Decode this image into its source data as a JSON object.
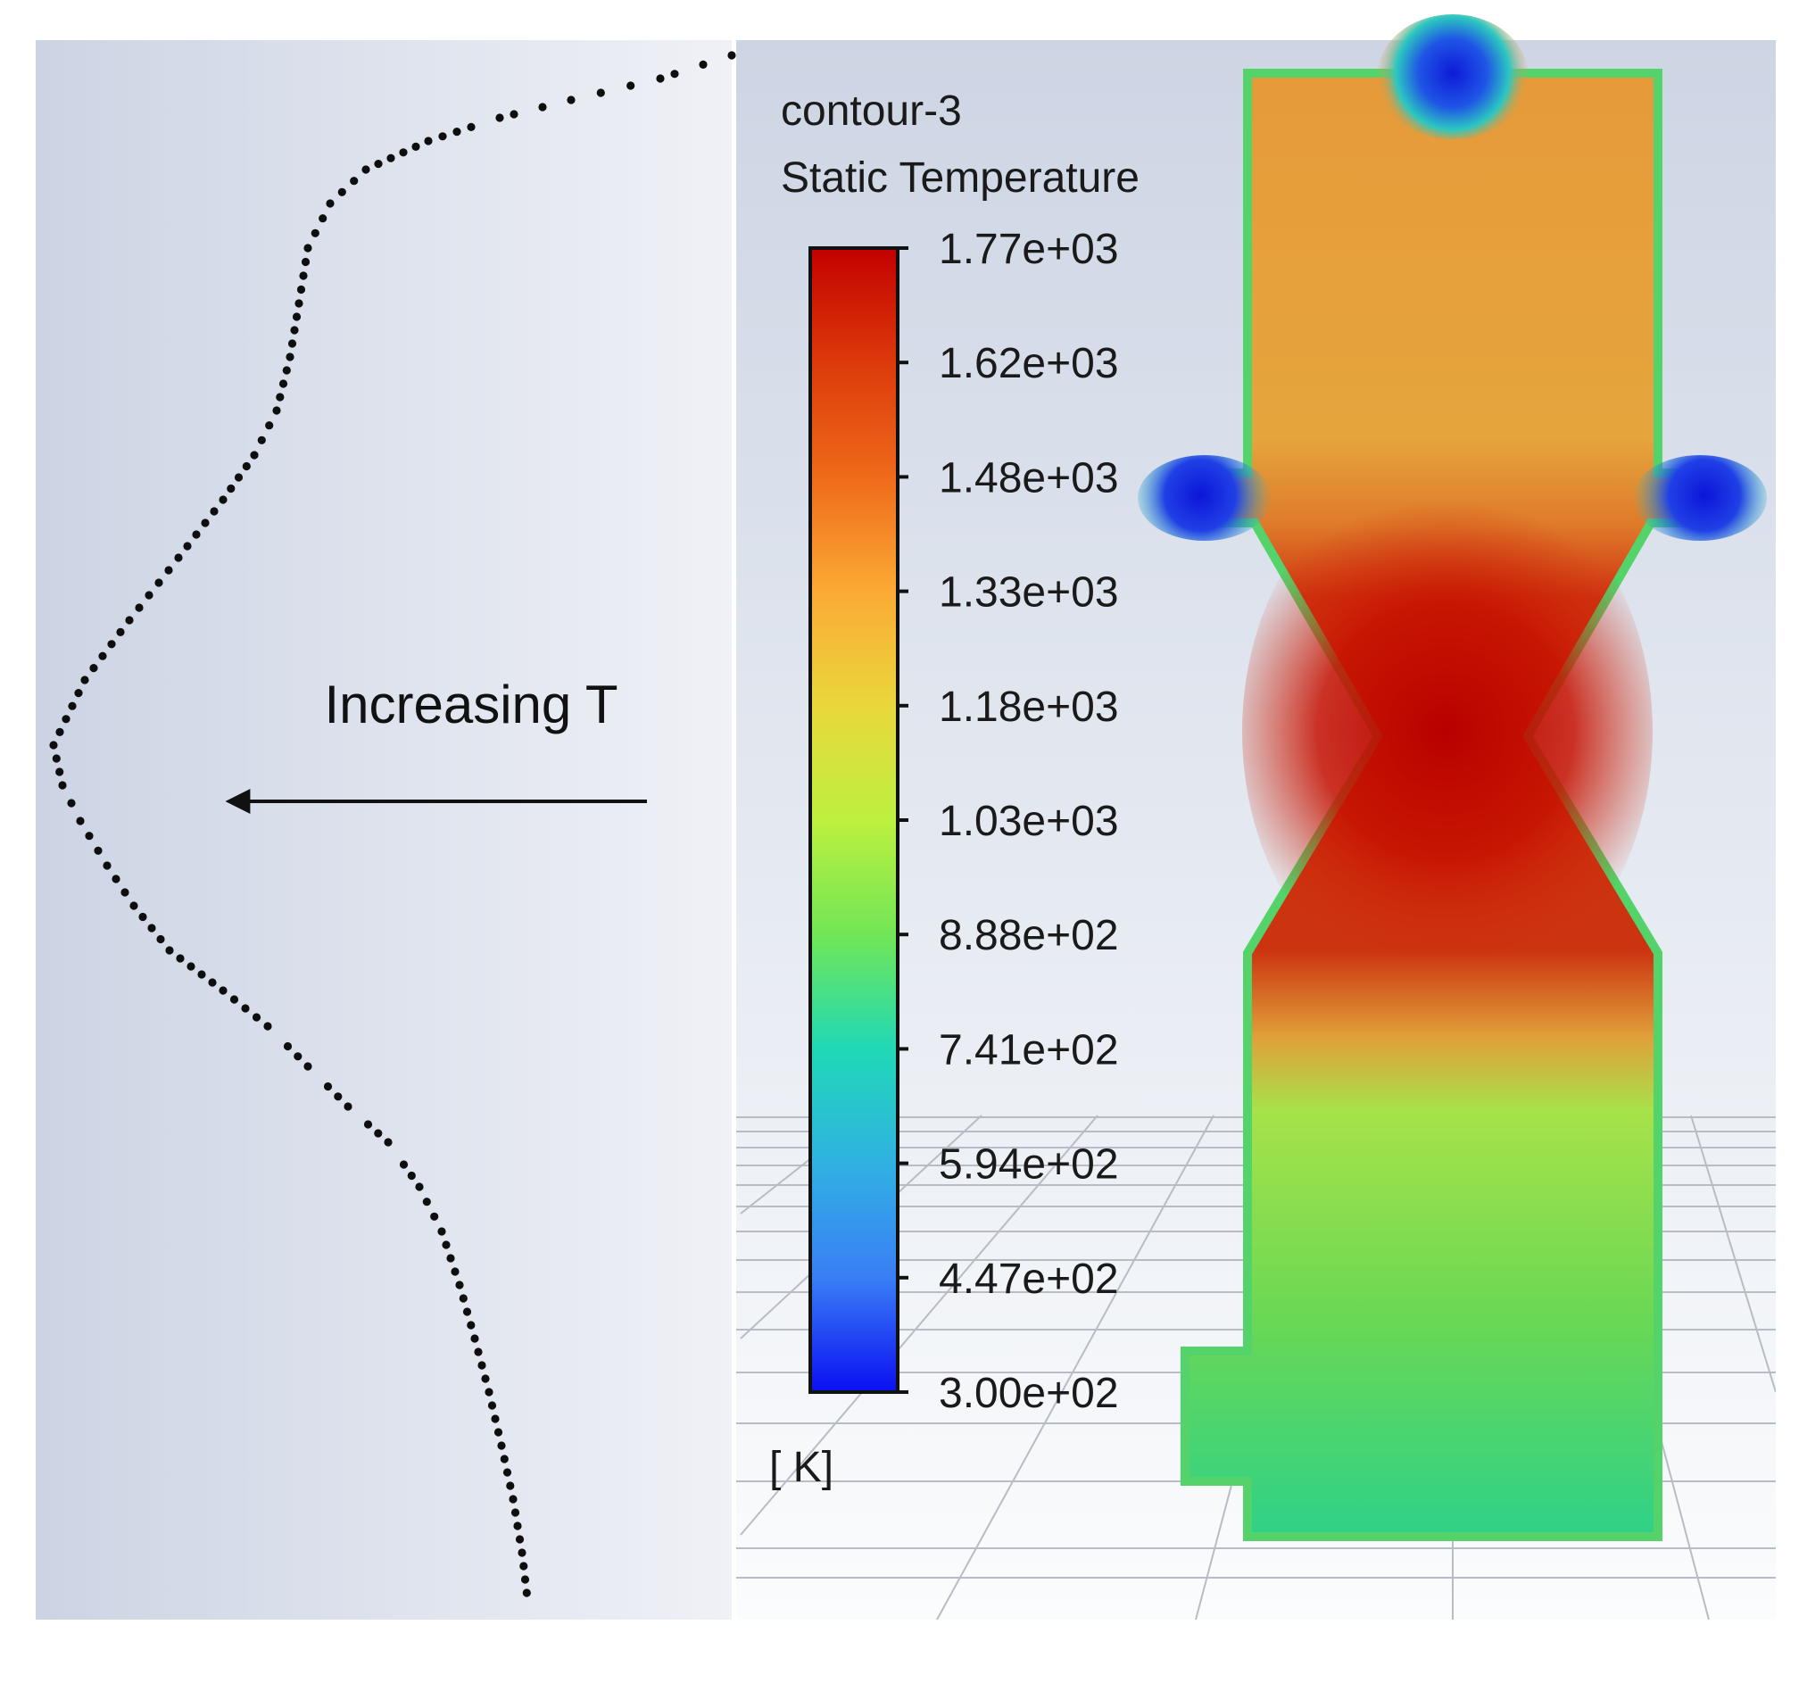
{
  "left_panel": {
    "annotation": "Increasing T"
  },
  "legend": {
    "name": "contour-3",
    "quantity": "Static Temperature",
    "unit": "[ K]",
    "ticks": [
      "1.77e+03",
      "1.62e+03",
      "1.48e+03",
      "1.33e+03",
      "1.18e+03",
      "1.03e+03",
      "8.88e+02",
      "7.41e+02",
      "5.94e+02",
      "4.47e+02",
      "3.00e+02"
    ],
    "colors": [
      "#c30000",
      "#dc3a0b",
      "#ef6a1a",
      "#fbaa35",
      "#ead73c",
      "#bdf03f",
      "#72e656",
      "#20d9b6",
      "#30b1e2",
      "#3a7ef5",
      "#0b10f2"
    ]
  },
  "contour": {
    "hot_color": "#c10000",
    "upper_color": "#e8a43c",
    "lower_color": "#5cd96a",
    "cold_color": "#1521e0"
  }
}
